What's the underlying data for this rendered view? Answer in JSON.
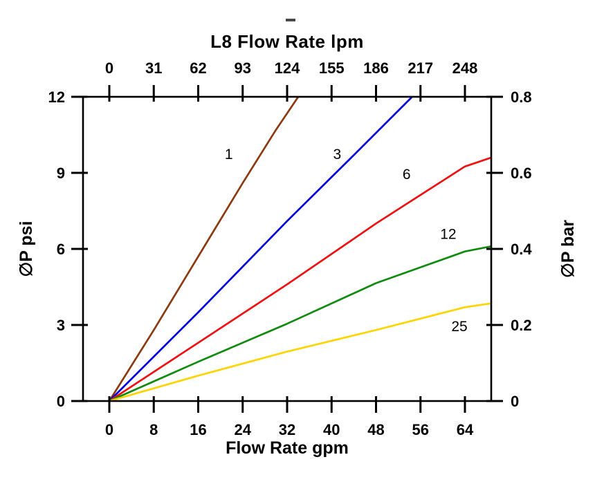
{
  "page": {
    "background": "#ffffff"
  },
  "chart_data": {
    "type": "line",
    "title_top": "L8  Flow Rate lpm",
    "xlabel_bottom": "Flow Rate gpm",
    "ylabel_left": "∅P psi",
    "ylabel_right": "∅P bar",
    "grid": false,
    "legend": "inline-labels-on-lines",
    "x_bottom": {
      "range": [
        0,
        64
      ],
      "ticks": [
        0,
        8,
        16,
        24,
        32,
        40,
        48,
        56,
        64
      ],
      "labels": [
        "0",
        "8",
        "16",
        "24",
        "32",
        "40",
        "48",
        "56",
        "64"
      ]
    },
    "x_top": {
      "range": [
        0,
        248
      ],
      "ticks": [
        0,
        31,
        62,
        93,
        124,
        155,
        186,
        217,
        248
      ],
      "labels": [
        "0",
        "31",
        "62",
        "93",
        "124",
        "155",
        "186",
        "217",
        "248"
      ]
    },
    "y_left": {
      "range": [
        0,
        12
      ],
      "ticks": [
        0,
        3,
        6,
        9,
        12
      ],
      "labels": [
        "0",
        "3",
        "6",
        "9",
        "12"
      ]
    },
    "y_right": {
      "range": [
        0,
        0.8
      ],
      "ticks": [
        0,
        0.2,
        0.4,
        0.6,
        0.8
      ],
      "labels": [
        "0",
        "0.2",
        "0.4",
        "0.6",
        "0.8"
      ]
    },
    "series": [
      {
        "name": "1",
        "label": "1",
        "color": "#8B3A0F",
        "points": [
          [
            0,
            0
          ],
          [
            8,
            2.8
          ],
          [
            16,
            5.7
          ],
          [
            24,
            8.6
          ],
          [
            30,
            10.7
          ],
          [
            34,
            12
          ]
        ],
        "label_at": [
          21.5,
          9.55
        ]
      },
      {
        "name": "3",
        "label": "3",
        "color": "#0000DD",
        "points": [
          [
            0,
            0
          ],
          [
            16,
            3.5
          ],
          [
            32,
            7.1
          ],
          [
            44,
            9.7
          ],
          [
            54.5,
            12
          ]
        ],
        "label_at": [
          41,
          9.55
        ]
      },
      {
        "name": "6",
        "label": "6",
        "color": "#EE1111",
        "points": [
          [
            0,
            0
          ],
          [
            16,
            2.3
          ],
          [
            32,
            4.6
          ],
          [
            48,
            7.0
          ],
          [
            64,
            9.25
          ],
          [
            68.7,
            9.6
          ]
        ],
        "label_at": [
          53.5,
          8.75
        ]
      },
      {
        "name": "12",
        "label": "12",
        "color": "#0E8A0E",
        "points": [
          [
            0,
            0
          ],
          [
            16,
            1.55
          ],
          [
            32,
            3.05
          ],
          [
            48,
            4.65
          ],
          [
            64,
            5.9
          ],
          [
            68.7,
            6.1
          ]
        ],
        "label_at": [
          61,
          6.4
        ]
      },
      {
        "name": "25",
        "label": "25",
        "color": "#FFD400",
        "points": [
          [
            0,
            0
          ],
          [
            16,
            1.0
          ],
          [
            32,
            1.95
          ],
          [
            48,
            2.8
          ],
          [
            64,
            3.7
          ],
          [
            68.7,
            3.85
          ]
        ],
        "label_at": [
          63,
          2.75
        ]
      }
    ]
  }
}
